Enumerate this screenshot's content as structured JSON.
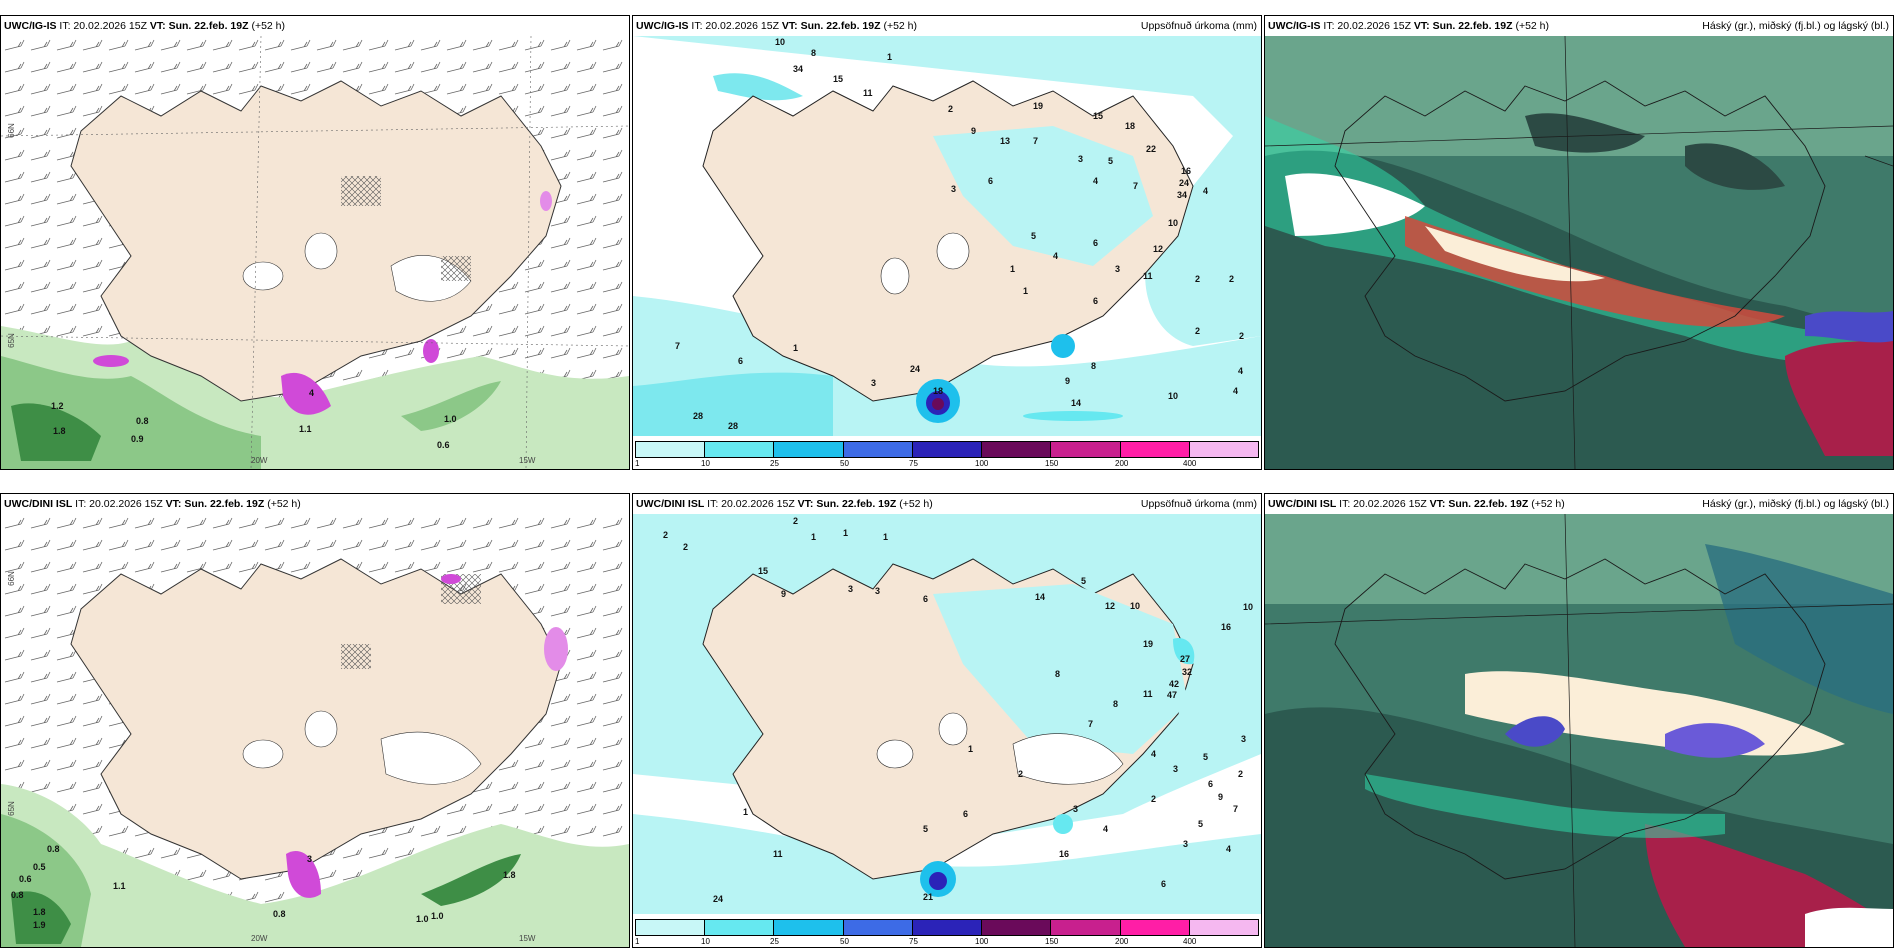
{
  "panels": [
    {
      "model": "UWC/IG-IS",
      "it": "IT: 20.02.2026 15Z",
      "vt": "VT: Sun. 22.feb. 19Z",
      "lead": "(+52 h)",
      "right": ""
    },
    {
      "model": "UWC/IG-IS",
      "it": "IT: 20.02.2026 15Z",
      "vt": "VT: Sun. 22.feb. 19Z",
      "lead": "(+52 h)",
      "right": "Uppsöfnuð úrkoma (mm)"
    },
    {
      "model": "UWC/IG-IS",
      "it": "IT: 20.02.2026 15Z",
      "vt": "VT: Sun. 22.feb. 19Z",
      "lead": "(+52 h)",
      "right": "Háský (gr.), miðský (fj.bl.) og lágský (bl.)"
    },
    {
      "model": "UWC/DINI ISL",
      "it": "IT: 20.02.2026 15Z",
      "vt": "VT: Sun. 22.feb. 19Z",
      "lead": "(+52 h)",
      "right": ""
    },
    {
      "model": "UWC/DINI ISL",
      "it": "IT: 20.02.2026 15Z",
      "vt": "VT: Sun. 22.feb. 19Z",
      "lead": "(+52 h)",
      "right": "Uppsöfnuð úrkoma (mm)"
    },
    {
      "model": "UWC/DINI ISL",
      "it": "IT: 20.02.2026 15Z",
      "vt": "VT: Sun. 22.feb. 19Z",
      "lead": "(+52 h)",
      "right": "Háský (gr.), miðský (fj.bl.) og lágský (bl.)"
    }
  ],
  "coords": {
    "lat66": "66N",
    "lat65": "65N",
    "lat64": "64N",
    "lon20": "20W",
    "lon15": "15W"
  },
  "legend": {
    "ticks": [
      "1",
      "10",
      "25",
      "50",
      "75",
      "100",
      "150",
      "200",
      "400"
    ],
    "colors": [
      "#c8f7f7",
      "#66e8f0",
      "#1ec0ec",
      "#3d6be6",
      "#2b23b8",
      "#6a0a5a",
      "#c8208e",
      "#ff1ea6",
      "#f5b8f0"
    ]
  },
  "precip_labels_top": [
    "10",
    "34",
    "15",
    "8",
    "1",
    "11",
    "2",
    "9",
    "19",
    "13",
    "7",
    "6",
    "3",
    "15",
    "18",
    "22",
    "16",
    "24",
    "34",
    "3",
    "4",
    "5",
    "7",
    "12",
    "10",
    "11",
    "2",
    "6",
    "1",
    "24",
    "18",
    "14",
    "28",
    "28",
    "7",
    "8",
    "9",
    "10",
    "4",
    "1",
    "6",
    "3",
    "2",
    "1",
    "5",
    "4",
    "6",
    "3",
    "2",
    "2",
    "4",
    "4"
  ],
  "precip_labels_bot": [
    "2",
    "2",
    "1",
    "1",
    "1",
    "2",
    "15",
    "9",
    "3",
    "6",
    "3",
    "14",
    "5",
    "12",
    "10",
    "19",
    "27",
    "32",
    "42",
    "47",
    "3",
    "4",
    "8",
    "8",
    "7",
    "11",
    "16",
    "16",
    "11",
    "21",
    "24",
    "10",
    "5",
    "6",
    "9",
    "7",
    "3",
    "2",
    "1",
    "5",
    "6",
    "3",
    "4",
    "1",
    "2",
    "5",
    "3",
    "2",
    "6",
    "4"
  ],
  "wind_vals_top": [
    "1.2",
    "1.8",
    "0.8",
    "0.9",
    "1.0",
    "0.6",
    "4",
    "1.1"
  ],
  "wind_vals_bot": [
    "0.8",
    "0.5",
    "0.6",
    "0.8",
    "1.1",
    "0.8",
    "1.9",
    "1.8",
    "1.0",
    "1.0",
    "1.8",
    "3"
  ],
  "colors": {
    "land": "#f5e6d6",
    "sea": "#ffffff",
    "green1": "#c8e8c0",
    "green2": "#8cc888",
    "green3": "#3e8e46",
    "magenta": "#d04ad8",
    "cyan1": "#b8f4f4",
    "cyan2": "#7de8ee",
    "cloudBase": "#3f7a6a",
    "cloudDark": "#2c5a50"
  }
}
